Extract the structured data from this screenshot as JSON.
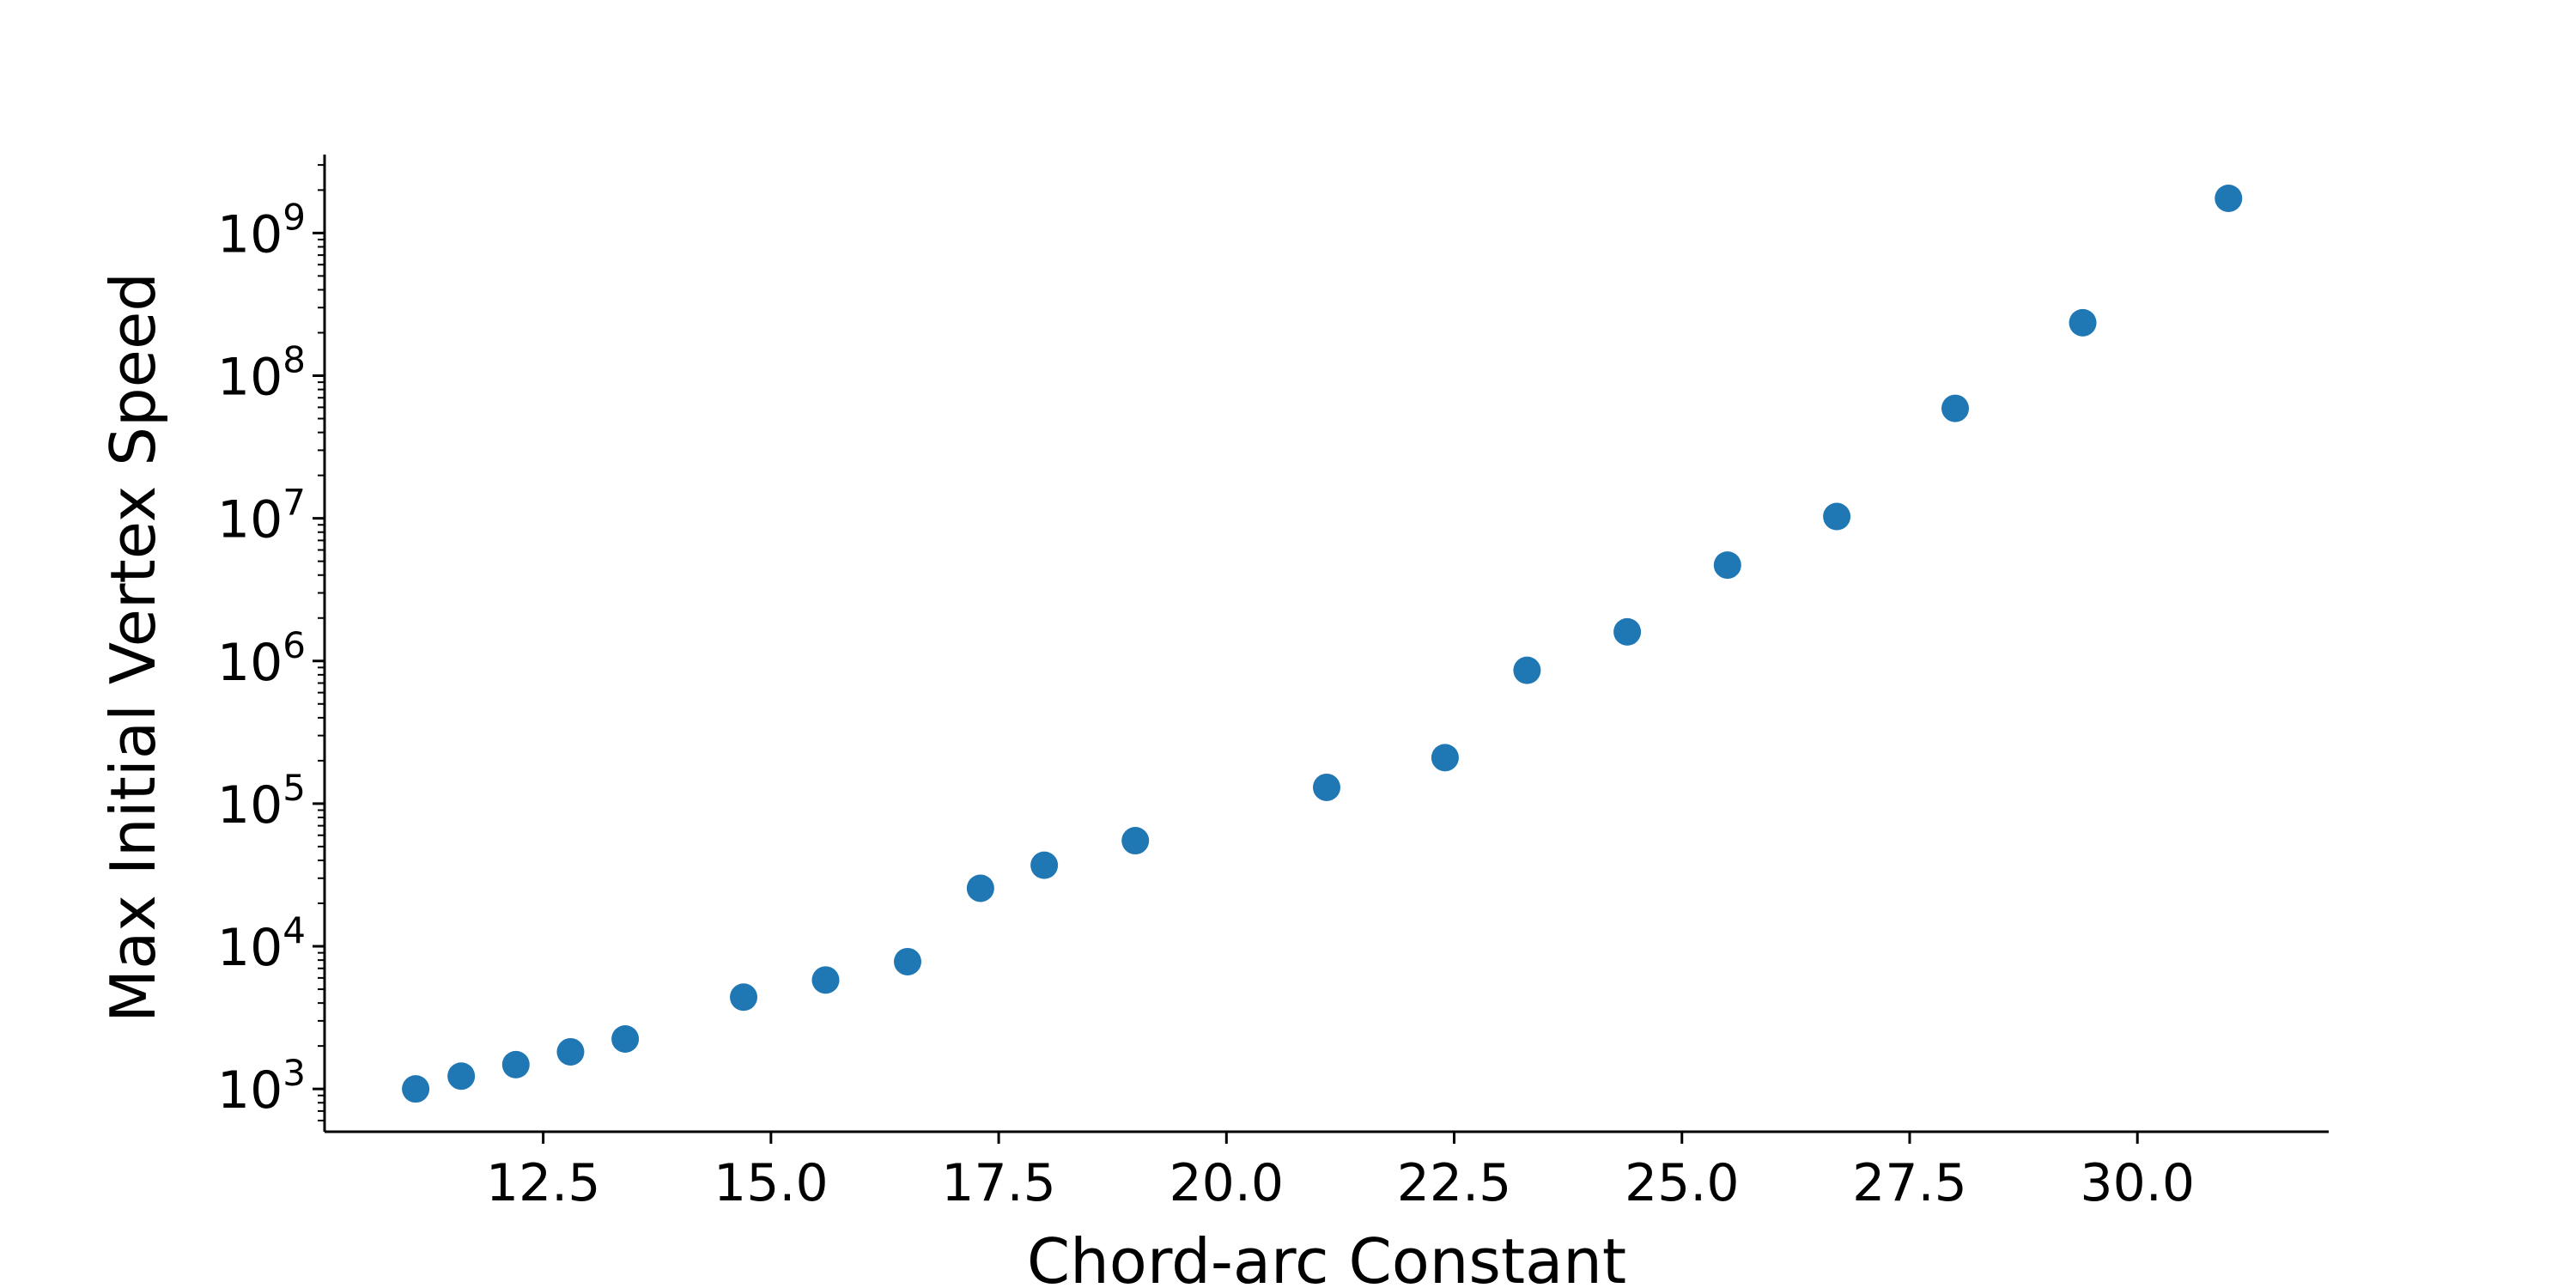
{
  "chart_data": {
    "type": "scatter",
    "xlabel": "Chord-arc Constant",
    "ylabel": "Max Initial Vertex Speed",
    "title": "",
    "y_scale": "log",
    "grid": false,
    "legend": "none",
    "xlim": [
      10.1,
      32.1
    ],
    "ylim_exponent": [
      2.7,
      9.55
    ],
    "x_ticks": [
      12.5,
      15.0,
      17.5,
      20.0,
      22.5,
      25.0,
      27.5,
      30.0
    ],
    "x_tick_labels": [
      "12.5",
      "15.0",
      "17.5",
      "20.0",
      "22.5",
      "25.0",
      "27.5",
      "30.0"
    ],
    "y_ticks": [
      3,
      4,
      5,
      6,
      7,
      8,
      9
    ],
    "y_tick_base": "10",
    "y_tick_exponents": [
      "3",
      "4",
      "5",
      "6",
      "7",
      "8",
      "9"
    ],
    "marker_color": "#1f77b4",
    "points": [
      {
        "x": 11.1,
        "y": 1000
      },
      {
        "x": 11.6,
        "y": 1230
      },
      {
        "x": 12.2,
        "y": 1480
      },
      {
        "x": 12.8,
        "y": 1820
      },
      {
        "x": 13.4,
        "y": 2240
      },
      {
        "x": 14.7,
        "y": 4400
      },
      {
        "x": 15.6,
        "y": 5800
      },
      {
        "x": 16.5,
        "y": 7800
      },
      {
        "x": 17.3,
        "y": 25500
      },
      {
        "x": 18.0,
        "y": 37000
      },
      {
        "x": 19.0,
        "y": 55000
      },
      {
        "x": 21.1,
        "y": 130000
      },
      {
        "x": 22.4,
        "y": 210000
      },
      {
        "x": 23.3,
        "y": 860000
      },
      {
        "x": 24.4,
        "y": 1600000
      },
      {
        "x": 25.5,
        "y": 4700000
      },
      {
        "x": 26.7,
        "y": 10300000
      },
      {
        "x": 28.0,
        "y": 59000000
      },
      {
        "x": 29.4,
        "y": 235000000
      },
      {
        "x": 31.0,
        "y": 1750000000
      }
    ]
  }
}
